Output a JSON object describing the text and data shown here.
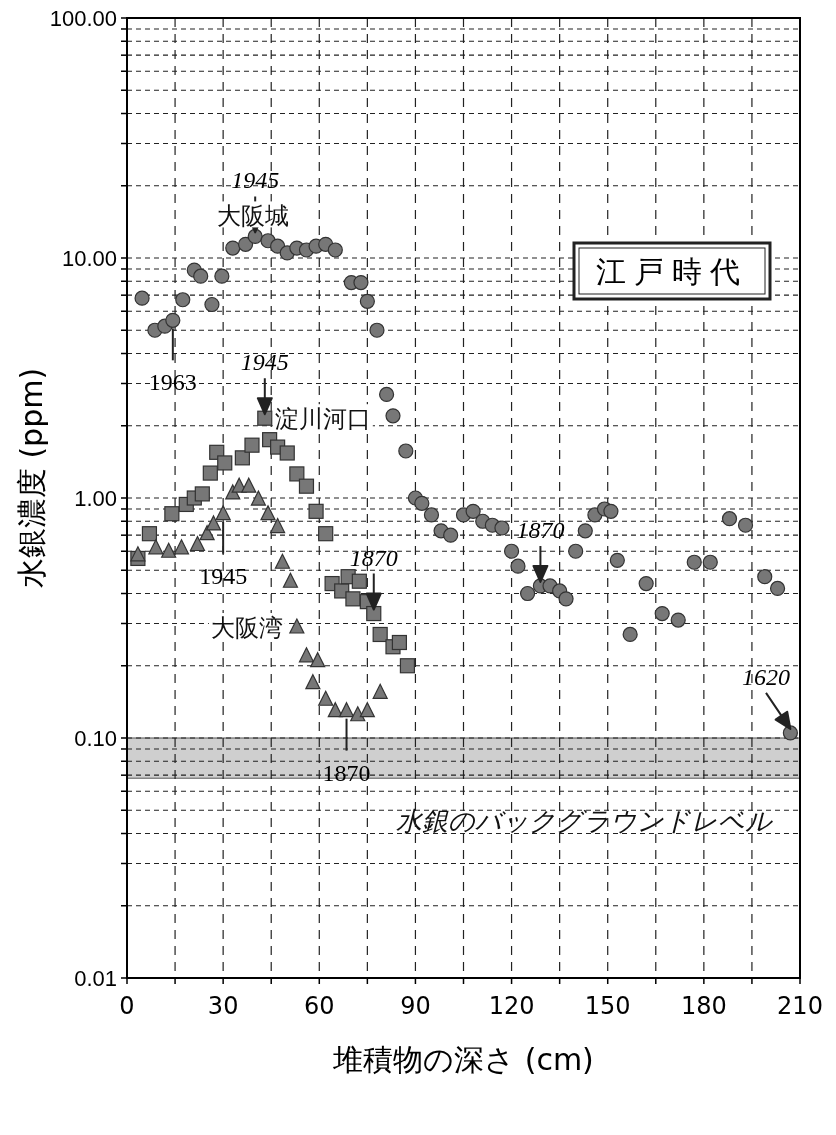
{
  "chart_data": {
    "type": "scatter",
    "xlabel": "堆積物の深さ (cm)",
    "ylabel": "水銀濃度 (ppm)",
    "log": "y",
    "grid": true,
    "xlim": [
      0,
      210
    ],
    "xticks": [
      0,
      {
        "value": 15,
        "label": null
      },
      30,
      {
        "value": 45,
        "label": null
      },
      60,
      {
        "value": 75,
        "label": null
      },
      90,
      {
        "value": 105,
        "label": null
      },
      120,
      {
        "value": 135,
        "label": null
      },
      150,
      {
        "value": 165,
        "label": null
      },
      180,
      {
        "value": 195,
        "label": null
      },
      210
    ],
    "ylim": [
      0.01,
      100
    ],
    "yticks": [
      {
        "value": 0.01,
        "label": "0.01"
      },
      {
        "value": 0.02,
        "label": null
      },
      {
        "value": 0.03,
        "label": null
      },
      {
        "value": 0.04,
        "label": null
      },
      {
        "value": 0.05,
        "label": null
      },
      {
        "value": 0.06,
        "label": null
      },
      {
        "value": 0.07,
        "label": null
      },
      {
        "value": 0.08,
        "label": null
      },
      {
        "value": 0.09,
        "label": null
      },
      {
        "value": 0.1,
        "label": "0.10"
      },
      {
        "value": 0.2,
        "label": null
      },
      {
        "value": 0.3,
        "label": null
      },
      {
        "value": 0.4,
        "label": null
      },
      {
        "value": 0.5,
        "label": null
      },
      {
        "value": 0.6,
        "label": null
      },
      {
        "value": 0.7,
        "label": null
      },
      {
        "value": 0.8,
        "label": null
      },
      {
        "value": 0.9,
        "label": null
      },
      {
        "value": 1,
        "label": "1.00"
      },
      {
        "value": 2,
        "label": null
      },
      {
        "value": 3,
        "label": null
      },
      {
        "value": 4,
        "label": null
      },
      {
        "value": 5,
        "label": null
      },
      {
        "value": 6,
        "label": null
      },
      {
        "value": 7,
        "label": null
      },
      {
        "value": 8,
        "label": null
      },
      {
        "value": 9,
        "label": null
      },
      {
        "value": 10,
        "label": "10.00"
      },
      {
        "value": 20,
        "label": null
      },
      {
        "value": 30,
        "label": null
      },
      {
        "value": 40,
        "label": null
      },
      {
        "value": 50,
        "label": null
      },
      {
        "value": 60,
        "label": null
      },
      {
        "value": 70,
        "label": null
      },
      {
        "value": 80,
        "label": null
      },
      {
        "value": 90,
        "label": null
      },
      {
        "value": 100,
        "label": "100.00"
      }
    ],
    "series": [
      {
        "name": "大阪城",
        "color": "#777777",
        "marker": "circle",
        "x": [
          4.7,
          8.7,
          11.8,
          14.3,
          17.4,
          21,
          23,
          26.5,
          29.6,
          33,
          37,
          40,
          44,
          47,
          50,
          53,
          56,
          59,
          62,
          65,
          70,
          73,
          75,
          78,
          81,
          83,
          87,
          90,
          92,
          95,
          98,
          101,
          105,
          108,
          111,
          114,
          117,
          120,
          122,
          125,
          129,
          132,
          135,
          137,
          140,
          143,
          146,
          149,
          151,
          153,
          157,
          162,
          167,
          172,
          177,
          182,
          188,
          193,
          199,
          203,
          207
        ],
        "values": [
          6.8,
          5.0,
          5.2,
          5.5,
          6.7,
          8.9,
          8.4,
          6.4,
          8.4,
          11,
          11.4,
          12.3,
          11.8,
          11.2,
          10.5,
          11,
          10.8,
          11.2,
          11.4,
          10.8,
          7.9,
          7.9,
          6.6,
          5.0,
          2.7,
          2.2,
          1.57,
          1.0,
          0.95,
          0.85,
          0.73,
          0.7,
          0.85,
          0.88,
          0.8,
          0.77,
          0.75,
          0.6,
          0.52,
          0.4,
          0.43,
          0.43,
          0.41,
          0.38,
          0.6,
          0.73,
          0.85,
          0.9,
          0.88,
          0.55,
          0.27,
          0.44,
          0.33,
          0.31,
          0.54,
          0.54,
          0.82,
          0.77,
          0.47,
          0.42,
          0.105
        ]
      },
      {
        "name": "淀川河口",
        "color": "#777777",
        "marker": "square",
        "x": [
          3.4,
          7,
          14,
          18.5,
          21,
          23.5,
          26,
          28,
          30.5,
          36,
          39,
          43,
          44.5,
          47,
          50,
          53,
          56,
          59,
          62,
          64,
          67,
          69,
          70.5,
          72.5,
          75,
          77,
          79,
          83,
          85,
          87.5
        ],
        "values": [
          0.56,
          0.71,
          0.86,
          0.94,
          1.0,
          1.04,
          1.27,
          1.55,
          1.4,
          1.47,
          1.66,
          2.15,
          1.75,
          1.63,
          1.54,
          1.26,
          1.12,
          0.88,
          0.71,
          0.44,
          0.41,
          0.47,
          0.38,
          0.45,
          0.37,
          0.33,
          0.27,
          0.24,
          0.25,
          0.2
        ]
      },
      {
        "name": "大阪湾",
        "color": "#777777",
        "marker": "triangle",
        "x": [
          3.4,
          9,
          13,
          17,
          22,
          25,
          27,
          30,
          33,
          35,
          38,
          41,
          44,
          47,
          48.5,
          51,
          53,
          56,
          58,
          59.5,
          62,
          65,
          68.5,
          72,
          75,
          79
        ],
        "values": [
          0.58,
          0.62,
          0.6,
          0.62,
          0.64,
          0.71,
          0.78,
          0.86,
          1.05,
          1.12,
          1.12,
          0.99,
          0.86,
          0.76,
          0.54,
          0.45,
          0.29,
          0.22,
          0.17,
          0.21,
          0.145,
          0.13,
          0.13,
          0.125,
          0.13,
          0.155
        ]
      }
    ],
    "bands": [
      {
        "axis": "y",
        "from": 0.068,
        "to": 0.1,
        "label": "水銀のバックグラウンドレベル",
        "color": "#cfcfcf"
      }
    ],
    "annotations": [
      {
        "text": "1963",
        "x": 14.3,
        "y": 5.5
      },
      {
        "text": "1945",
        "x": 40,
        "y": 12.3
      },
      {
        "text": "1945",
        "x": 43,
        "y": 2.15
      },
      {
        "text": "1870",
        "x": 77,
        "y": 0.33
      },
      {
        "text": "1945",
        "x": 30,
        "y": 0.86
      },
      {
        "text": "1870",
        "x": 68.5,
        "y": 0.13
      },
      {
        "text": "1870",
        "x": 129,
        "y": 0.43
      },
      {
        "text": "1620",
        "x": 207,
        "y": 0.105
      },
      "江戸時代"
    ]
  }
}
